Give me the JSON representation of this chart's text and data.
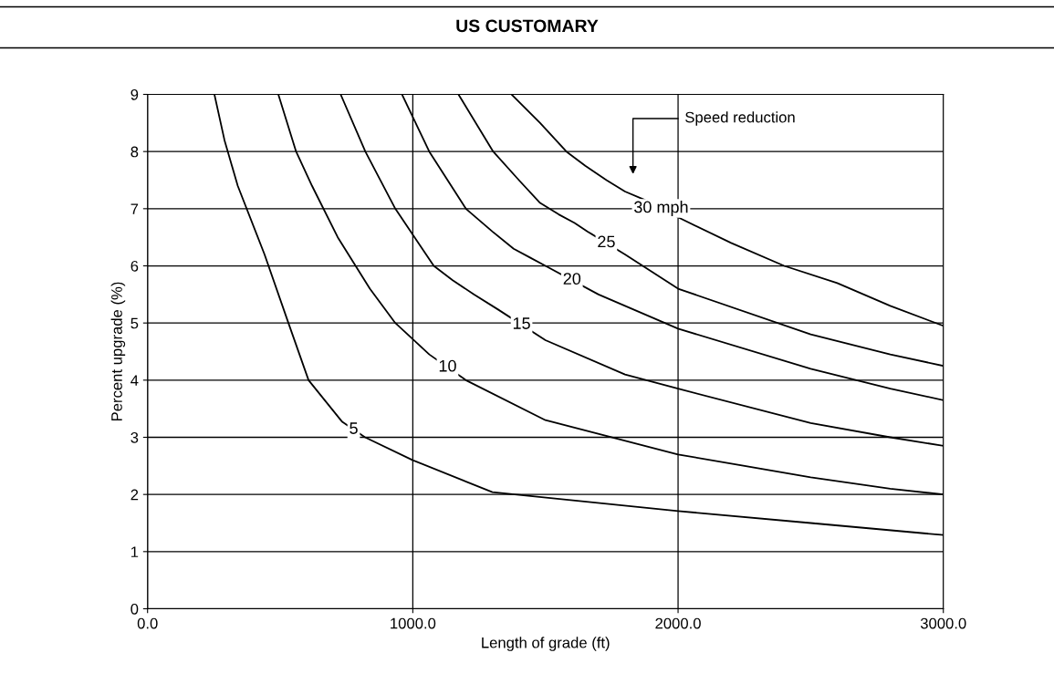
{
  "chart_data": {
    "type": "line",
    "title": "US CUSTOMARY",
    "xlabel": "Length of grade (ft)",
    "ylabel": "Percent upgrade (%)",
    "xlim": [
      0,
      3000
    ],
    "xticks": [
      {
        "value": 0,
        "label": "0.0"
      },
      {
        "value": 1000,
        "label": "1000.0"
      },
      {
        "value": 2000,
        "label": "2000.0"
      },
      {
        "value": 3000,
        "label": "3000.0"
      }
    ],
    "ylim": [
      0,
      9
    ],
    "yticks": [
      0,
      1,
      2,
      3,
      4,
      5,
      6,
      7,
      8,
      9
    ],
    "grid": true,
    "marker": "none",
    "line_style": "solid",
    "annotations": [
      "Speed reduction"
    ],
    "series": [
      {
        "name": "5",
        "color": "#000000",
        "x": [
          252,
          290,
          340,
          441,
          531,
          607,
          734,
          820,
          1000,
          1300,
          2000,
          2500,
          3000
        ],
        "values": [
          9,
          8.2,
          7.4,
          6.2,
          5,
          4,
          3.27,
          3,
          2.6,
          2.04,
          1.71,
          1.5,
          1.29
        ]
      },
      {
        "name": "10",
        "color": "#000000",
        "x": [
          493,
          560,
          620,
          717,
          838,
          934,
          1062,
          1200,
          1500,
          2000,
          2500,
          2800,
          3000
        ],
        "values": [
          9,
          8,
          7.4,
          6.5,
          5.6,
          5,
          4.45,
          4,
          3.3,
          2.7,
          2.3,
          2.1,
          2.0
        ]
      },
      {
        "name": "15",
        "color": "#000000",
        "x": [
          728,
          821,
          934,
          1079,
          1150,
          1230,
          1320,
          1500,
          1800,
          2000,
          2500,
          2800,
          3000
        ],
        "values": [
          9,
          8,
          7,
          6,
          5.75,
          5.5,
          5.24,
          4.7,
          4.1,
          3.85,
          3.25,
          3.0,
          2.85
        ]
      },
      {
        "name": "20",
        "color": "#000000",
        "x": [
          959,
          1062,
          1200,
          1300,
          1380,
          1440,
          1500,
          1700,
          1900,
          2000,
          2500,
          2800,
          3000
        ],
        "values": [
          9,
          8,
          7,
          6.6,
          6.3,
          6.15,
          6.0,
          5.5,
          5.1,
          4.9,
          4.2,
          3.85,
          3.65
        ]
      },
      {
        "name": "25",
        "color": "#000000",
        "x": [
          1172,
          1303,
          1400,
          1480,
          1550,
          1610,
          1659,
          1800,
          1900,
          2000,
          2500,
          2800,
          3000
        ],
        "values": [
          9,
          8,
          7.5,
          7.1,
          6.9,
          6.75,
          6.6,
          6.2,
          5.9,
          5.6,
          4.8,
          4.45,
          4.25
        ]
      },
      {
        "name": "30 mph",
        "color": "#000000",
        "x": [
          1372,
          1480,
          1579,
          1650,
          1730,
          1800,
          1872,
          2000,
          2200,
          2400,
          2600,
          2800,
          3000
        ],
        "values": [
          9,
          8.5,
          8,
          7.75,
          7.5,
          7.3,
          7.16,
          6.85,
          6.4,
          6.0,
          5.7,
          5.3,
          4.95
        ]
      }
    ]
  }
}
